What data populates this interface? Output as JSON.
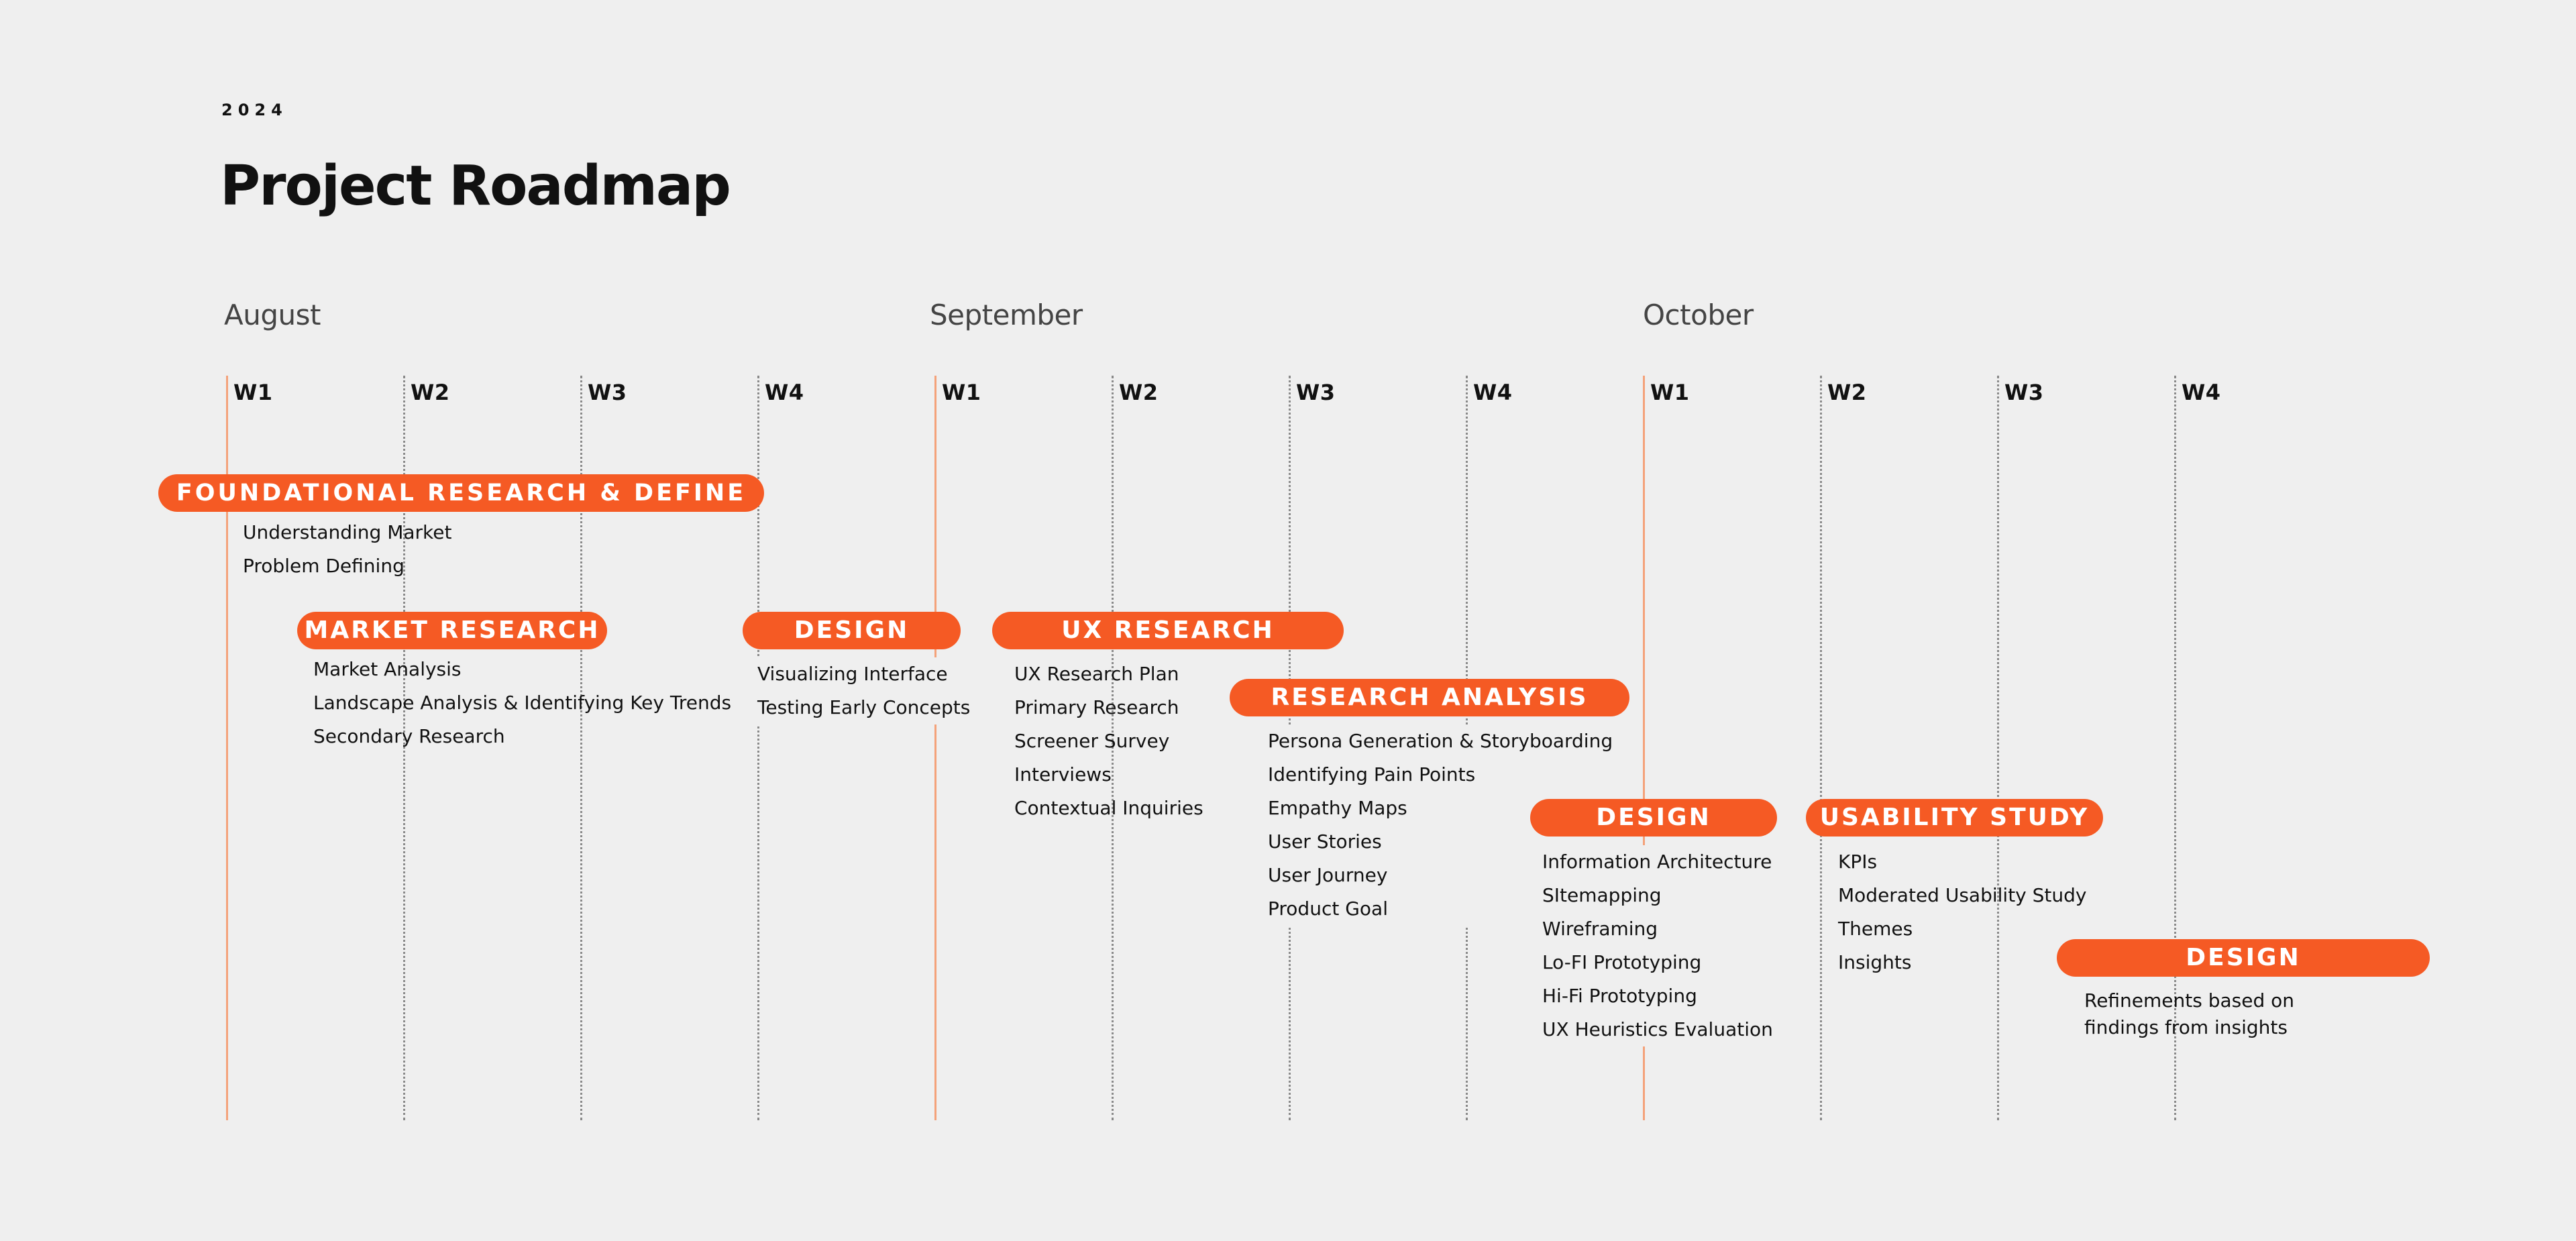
{
  "header": {
    "year": "2024",
    "title": "Project Roadmap"
  },
  "months": [
    "August",
    "September",
    "October"
  ],
  "weeks": [
    "W1",
    "W2",
    "W3",
    "W4",
    "W1",
    "W2",
    "W3",
    "W4",
    "W1",
    "W2",
    "W3",
    "W4"
  ],
  "phases": [
    {
      "label": "FOUNDATIONAL RESEARCH & DEFINE",
      "items": [
        "Understanding Market",
        "Problem Defining"
      ]
    },
    {
      "label": "MARKET RESEARCH",
      "items": [
        "Market Analysis",
        "Landscape Analysis & Identifying Key Trends",
        "Secondary Research"
      ]
    },
    {
      "label": "DESIGN",
      "items": [
        "Visualizing Interface",
        "Testing Early Concepts"
      ]
    },
    {
      "label": "UX RESEARCH",
      "items": [
        "UX Research Plan",
        "Primary Research",
        "Screener Survey",
        "Interviews",
        "Contextual Inquiries"
      ]
    },
    {
      "label": "RESEARCH ANALYSIS",
      "items": [
        "Persona Generation & Storyboarding",
        "Identifying Pain Points",
        "Empathy Maps",
        "User Stories",
        "User Journey",
        "Product Goal"
      ]
    },
    {
      "label": "DESIGN",
      "items": [
        "Information Architecture",
        "SItemapping",
        "Wireframing",
        "Lo-FI Prototyping",
        "Hi-Fi Prototyping",
        "UX Heuristics Evaluation"
      ]
    },
    {
      "label": "USABILITY STUDY",
      "items": [
        "KPIs",
        "Moderated Usability Study",
        "Themes",
        "Insights"
      ]
    },
    {
      "label": "DESIGN",
      "items": [
        "Refinements based on findings from insights"
      ]
    }
  ],
  "colors": {
    "accent": "#f55a24",
    "background": "#efefef",
    "month_line": "#f4a27a"
  }
}
